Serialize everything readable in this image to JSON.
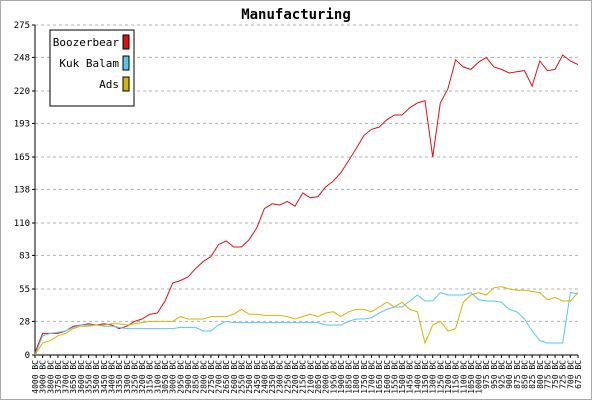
{
  "chart_data": {
    "type": "line",
    "title": "Manufacturing",
    "xlabel": "",
    "ylabel": "",
    "ylim": [
      0,
      275
    ],
    "yticks": [
      0,
      28,
      55,
      83,
      110,
      138,
      165,
      193,
      220,
      248,
      275
    ],
    "grid": "horizontal dashed",
    "legend_position": "top-left",
    "x": [
      "4000 BC",
      "3900 BC",
      "3800 BC",
      "3750 BC",
      "3700 BC",
      "3650 BC",
      "3600 BC",
      "3550 BC",
      "3500 BC",
      "3450 BC",
      "3400 BC",
      "3350 BC",
      "3300 BC",
      "3250 BC",
      "3200 BC",
      "3150 BC",
      "3100 BC",
      "3050 BC",
      "3000 BC",
      "2950 BC",
      "2900 BC",
      "2850 BC",
      "2800 BC",
      "2750 BC",
      "2700 BC",
      "2650 BC",
      "2600 BC",
      "2550 BC",
      "2500 BC",
      "2450 BC",
      "2400 BC",
      "2350 BC",
      "2300 BC",
      "2250 BC",
      "2200 BC",
      "2150 BC",
      "2100 BC",
      "2050 BC",
      "2000 BC",
      "1950 BC",
      "1900 BC",
      "1850 BC",
      "1800 BC",
      "1750 BC",
      "1700 BC",
      "1650 BC",
      "1600 BC",
      "1550 BC",
      "1500 BC",
      "1450 BC",
      "1400 BC",
      "1350 BC",
      "1300 BC",
      "1250 BC",
      "1200 BC",
      "1150 BC",
      "1100 BC",
      "1050 BC",
      "1000 BC",
      "975 BC",
      "950 BC",
      "925 BC",
      "900 BC",
      "875 BC",
      "850 BC",
      "825 BC",
      "800 BC",
      "775 BC",
      "750 BC",
      "725 BC",
      "700 BC",
      "675 BC"
    ],
    "series": [
      {
        "name": "Boozerbear",
        "color": "#e01010",
        "values": [
          2,
          18,
          18,
          18,
          20,
          24,
          25,
          26,
          25,
          26,
          25,
          22,
          24,
          28,
          30,
          34,
          35,
          45,
          60,
          62,
          65,
          72,
          78,
          82,
          92,
          95,
          90,
          90,
          96,
          106,
          122,
          126,
          125,
          128,
          124,
          135,
          131,
          132,
          140,
          145,
          152,
          162,
          172,
          183,
          188,
          190,
          196,
          200,
          200,
          206,
          210,
          212,
          165,
          210,
          222,
          246,
          240,
          238,
          244,
          248,
          240,
          238,
          235,
          236,
          237,
          224,
          245,
          237,
          238,
          250,
          245,
          242
        ]
      },
      {
        "name": "Kuk Balam",
        "color": "#55c8f0",
        "values": [
          0,
          16,
          18,
          19,
          20,
          23,
          25,
          25,
          25,
          24,
          24,
          23,
          22,
          22,
          22,
          22,
          22,
          22,
          22,
          23,
          23,
          23,
          20,
          20,
          25,
          28,
          27,
          27,
          27,
          27,
          27,
          27,
          27,
          27,
          27,
          27,
          27,
          27,
          25,
          25,
          25,
          28,
          30,
          30,
          31,
          35,
          38,
          40,
          40,
          45,
          50,
          45,
          45,
          52,
          50,
          50,
          50,
          52,
          46,
          45,
          45,
          44,
          38,
          36,
          30,
          20,
          12,
          10,
          10,
          10,
          52,
          51
        ]
      },
      {
        "name": "Ads",
        "color": "#d8b400",
        "values": [
          0,
          10,
          12,
          16,
          18,
          22,
          24,
          24,
          25,
          25,
          26,
          26,
          25,
          26,
          27,
          28,
          28,
          28,
          28,
          32,
          30,
          30,
          30,
          32,
          32,
          32,
          34,
          38,
          34,
          34,
          33,
          33,
          33,
          32,
          30,
          32,
          34,
          32,
          35,
          36,
          32,
          36,
          38,
          38,
          36,
          40,
          44,
          40,
          44,
          38,
          36,
          10,
          25,
          28,
          20,
          22,
          44,
          50,
          52,
          50,
          56,
          57,
          55,
          54,
          54,
          53,
          52,
          46,
          48,
          45,
          45,
          52
        ]
      }
    ]
  }
}
